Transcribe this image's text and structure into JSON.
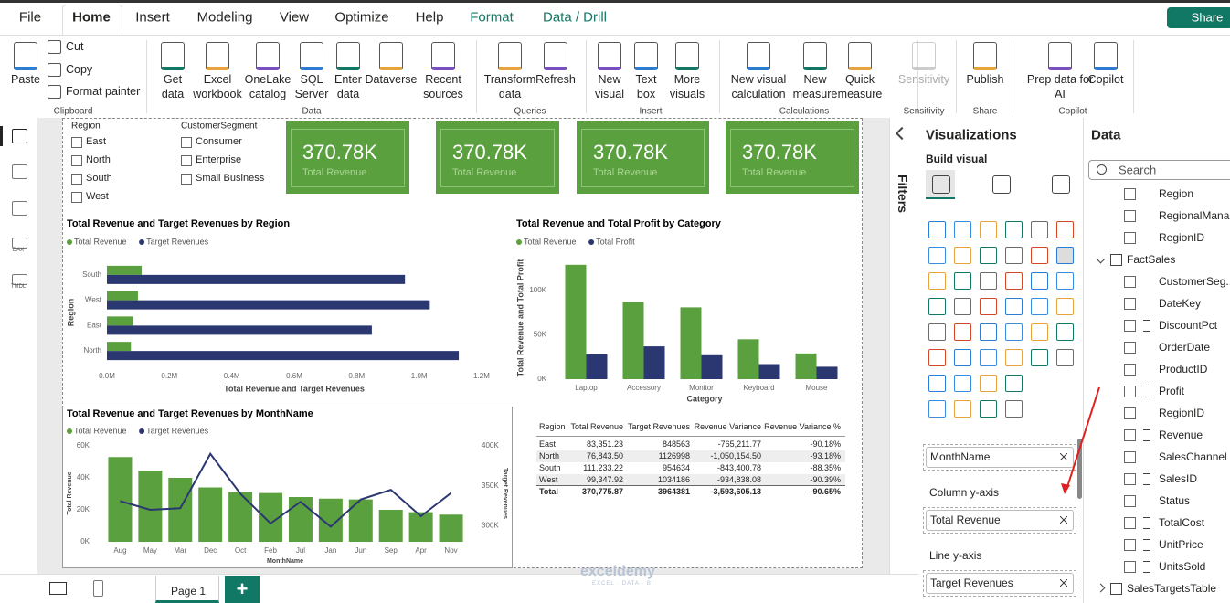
{
  "ribbon": {
    "tabs": [
      "File",
      "Home",
      "Insert",
      "Modeling",
      "View",
      "Optimize",
      "Help",
      "Format",
      "Data / Drill"
    ],
    "share": "Share",
    "groups": [
      {
        "name": "Clipboard",
        "buttons": [
          {
            "lines": [
              "Paste"
            ]
          },
          {
            "lines": [
              "Cut"
            ]
          },
          {
            "lines": [
              "Copy"
            ]
          },
          {
            "lines": [
              "Format painter"
            ]
          }
        ]
      },
      {
        "name": "Data",
        "buttons": [
          {
            "lines": [
              "Get",
              "data"
            ]
          },
          {
            "lines": [
              "Excel",
              "workbook"
            ]
          },
          {
            "lines": [
              "OneLake",
              "catalog"
            ]
          },
          {
            "lines": [
              "SQL",
              "Server"
            ]
          },
          {
            "lines": [
              "Enter",
              "data"
            ]
          },
          {
            "lines": [
              "Dataverse"
            ]
          },
          {
            "lines": [
              "Recent",
              "sources"
            ]
          }
        ]
      },
      {
        "name": "Queries",
        "buttons": [
          {
            "lines": [
              "Transform",
              "data"
            ]
          },
          {
            "lines": [
              "Refresh"
            ]
          }
        ]
      },
      {
        "name": "Insert",
        "buttons": [
          {
            "lines": [
              "New",
              "visual"
            ]
          },
          {
            "lines": [
              "Text",
              "box"
            ]
          },
          {
            "lines": [
              "More",
              "visuals"
            ]
          }
        ]
      },
      {
        "name": "Calculations",
        "buttons": [
          {
            "lines": [
              "New visual",
              "calculation"
            ]
          },
          {
            "lines": [
              "New",
              "measure"
            ]
          },
          {
            "lines": [
              "Quick",
              "measure"
            ]
          }
        ]
      },
      {
        "name": "Sensitivity",
        "buttons": [
          {
            "lines": [
              "Sensitivity"
            ]
          }
        ]
      },
      {
        "name": "Share",
        "buttons": [
          {
            "lines": [
              "Publish"
            ]
          }
        ]
      },
      {
        "name": "Copilot",
        "buttons": [
          {
            "lines": [
              "Prep data for",
              "AI"
            ]
          },
          {
            "lines": [
              "Copilot"
            ]
          }
        ]
      }
    ]
  },
  "left_rail": [
    "DAX",
    "TMDL"
  ],
  "slicers": [
    {
      "title": "Region",
      "items": [
        "East",
        "North",
        "South",
        "West"
      ]
    },
    {
      "title": "CustomerSegment",
      "items": [
        "Consumer",
        "Enterprise",
        "Small Business"
      ]
    }
  ],
  "cards": [
    {
      "value": "370.78K",
      "label": "Total Revenue"
    },
    {
      "value": "370.78K",
      "label": "Total Revenue"
    },
    {
      "value": "370.78K",
      "label": "Total Revenue"
    },
    {
      "value": "370.78K",
      "label": "Total Revenue"
    }
  ],
  "charts": [
    {
      "type": "hbar",
      "title": "Total Revenue and Target Revenues by Region",
      "categories": [
        "South",
        "West",
        "East",
        "North"
      ],
      "series": [
        {
          "name": "Total Revenue",
          "color": "#5ba03e",
          "values": [
            111233.22,
            99347.92,
            83351.23,
            76843.5
          ]
        },
        {
          "name": "Target Revenues",
          "color": "#2b3770",
          "values": [
            954634,
            1034186,
            848563,
            1126998
          ]
        }
      ],
      "xlim": [
        0,
        1200000
      ],
      "xticks": [
        {
          "value": 0,
          "label": "0.0M"
        },
        {
          "value": 200000,
          "label": "0.2M"
        },
        {
          "value": 400000,
          "label": "0.4M"
        },
        {
          "value": 600000,
          "label": "0.6M"
        },
        {
          "value": 800000,
          "label": "0.8M"
        },
        {
          "value": 1000000,
          "label": "1.0M"
        },
        {
          "value": 1200000,
          "label": "1.2M"
        }
      ],
      "x_label": "Total Revenue and Target Revenues",
      "y_label": "Region"
    },
    {
      "type": "bar",
      "title": "Total Revenue and Total Profit by Category",
      "categories": [
        "Laptop",
        "Accessory",
        "Monitor",
        "Keyboard",
        "Mouse"
      ],
      "series": [
        {
          "name": "Total Revenue",
          "color": "#5ba03e",
          "values": [
            129000,
            87000,
            81000,
            45000,
            29000
          ]
        },
        {
          "name": "Total Profit",
          "color": "#2b3770",
          "values": [
            28000,
            37000,
            27000,
            17000,
            14000
          ]
        }
      ],
      "ylim": [
        0,
        135000
      ],
      "yticks": [
        {
          "value": 0,
          "label": "0K"
        },
        {
          "value": 50000,
          "label": "50K"
        },
        {
          "value": 100000,
          "label": "100K"
        }
      ],
      "x_label": "Category",
      "y_label": "Total Revenue and Total Profit"
    },
    {
      "type": "combo",
      "title": "Total Revenue and Target Revenues by MonthName",
      "categories": [
        "Aug",
        "May",
        "Mar",
        "Dec",
        "Oct",
        "Feb",
        "Jul",
        "Jan",
        "Jun",
        "Sep",
        "Apr",
        "Nov"
      ],
      "series": [
        {
          "name": "Total Revenue",
          "color": "#5ba03e",
          "values": [
            53000,
            44500,
            40000,
            34000,
            31000,
            30500,
            28000,
            27000,
            26500,
            20000,
            18500,
            17000
          ]
        },
        {
          "name": "Target Revenues",
          "color": "#2b3770",
          "axis": "y2",
          "values": [
            331000,
            320000,
            322000,
            390000,
            340000,
            303000,
            330000,
            299000,
            333000,
            345000,
            312000,
            341000
          ]
        }
      ],
      "ylim": [
        0,
        60000
      ],
      "yticks": [
        {
          "value": 0,
          "label": "0K"
        },
        {
          "value": 20000,
          "label": "20K"
        },
        {
          "value": 40000,
          "label": "40K"
        },
        {
          "value": 60000,
          "label": "60K"
        }
      ],
      "y2lim": [
        280000,
        400000
      ],
      "y2ticks": [
        {
          "value": 300000,
          "label": "300K"
        },
        {
          "value": 350000,
          "label": "350K"
        },
        {
          "value": 400000,
          "label": "400K"
        }
      ],
      "x_label": "MonthName",
      "y_label": "Total Revenue",
      "y2_label": "Target Revenues"
    }
  ],
  "table": {
    "columns": [
      "Region",
      "Total Revenue",
      "Target Revenues",
      "Revenue Variance",
      "Revenue Variance %"
    ],
    "rows": [
      [
        "East",
        "83,351.23",
        "848563",
        "-765,211.77",
        "-90.18%"
      ],
      [
        "North",
        "76,843.50",
        "1126998",
        "-1,050,154.50",
        "-93.18%"
      ],
      [
        "South",
        "111,233.22",
        "954634",
        "-843,400.78",
        "-88.35%"
      ],
      [
        "West",
        "99,347.92",
        "1034186",
        "-934,838.08",
        "-90.39%"
      ],
      [
        "Total",
        "370,775.87",
        "3964381",
        "-3,593,605.13",
        "-90.65%"
      ]
    ]
  },
  "filters": {
    "title": "Filters"
  },
  "visualizations": {
    "title": "Visualizations",
    "subtitle": "Build visual",
    "wells": [
      {
        "field": "MonthName"
      },
      {
        "label": "Column y-axis",
        "field": "Total Revenue"
      },
      {
        "label": "Line y-axis",
        "field": "Target Revenues"
      }
    ]
  },
  "data_pane": {
    "title": "Data",
    "search": "Search",
    "fields": [
      {
        "name": "Region"
      },
      {
        "name": "RegionalMana..."
      },
      {
        "name": "RegionID"
      },
      {
        "name": "FactSales",
        "table": true
      },
      {
        "name": "CustomerSeg..."
      },
      {
        "name": "DateKey"
      },
      {
        "name": "DiscountPct",
        "summable": true
      },
      {
        "name": "OrderDate"
      },
      {
        "name": "ProductID"
      },
      {
        "name": "Profit",
        "summable": true
      },
      {
        "name": "RegionID"
      },
      {
        "name": "Revenue",
        "summable": true
      },
      {
        "name": "SalesChannel"
      },
      {
        "name": "SalesID",
        "summable": true
      },
      {
        "name": "Status"
      },
      {
        "name": "TotalCost",
        "summable": true
      },
      {
        "name": "UnitPrice",
        "summable": true
      },
      {
        "name": "UnitsSold",
        "summable": true
      },
      {
        "name": "SalesTargetsTable",
        "table": true
      }
    ]
  },
  "pages": [
    "Page 1"
  ],
  "watermark": {
    "name": "exceldemy",
    "tagline": "EXCEL · DATA · BI"
  }
}
